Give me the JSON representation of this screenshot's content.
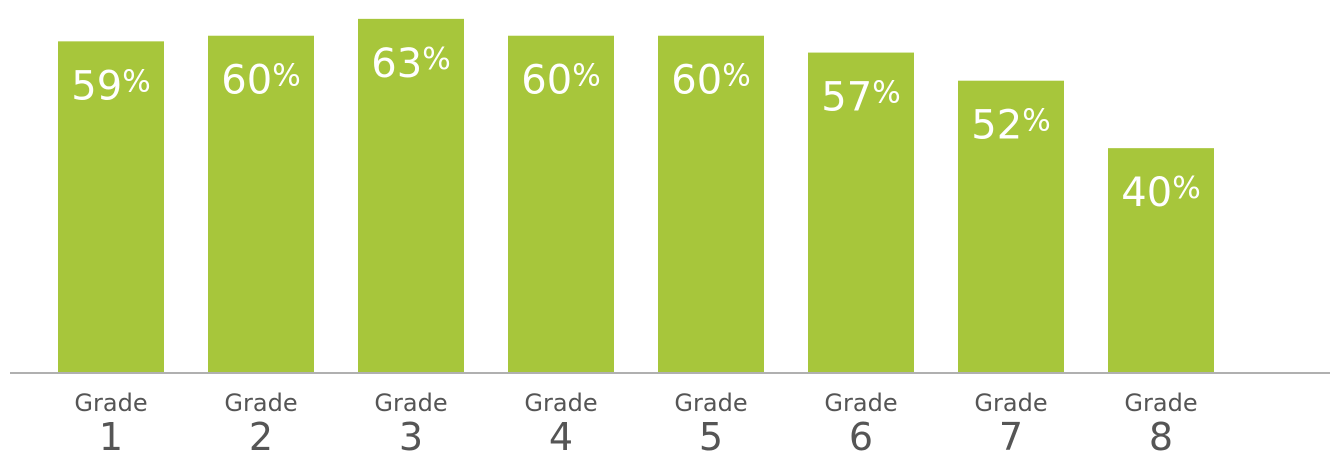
{
  "chart_data": {
    "type": "bar",
    "categories": [
      "Grade 1",
      "Grade 2",
      "Grade 3",
      "Grade 4",
      "Grade 5",
      "Grade 6",
      "Grade 7",
      "Grade 8"
    ],
    "category_lines": [
      [
        "Grade",
        "1"
      ],
      [
        "Grade",
        "2"
      ],
      [
        "Grade",
        "3"
      ],
      [
        "Grade",
        "4"
      ],
      [
        "Grade",
        "5"
      ],
      [
        "Grade",
        "6"
      ],
      [
        "Grade",
        "7"
      ],
      [
        "Grade",
        "8"
      ]
    ],
    "values": [
      59,
      60,
      63,
      60,
      60,
      57,
      52,
      40
    ],
    "data_labels": [
      "59%",
      "60%",
      "63%",
      "60%",
      "60%",
      "57%",
      "52%",
      "40%"
    ],
    "ylim": [
      0,
      66
    ],
    "grid": false,
    "legend": "none",
    "bar_color": "#a7c63b",
    "axis_color": "#b0b0b0"
  }
}
